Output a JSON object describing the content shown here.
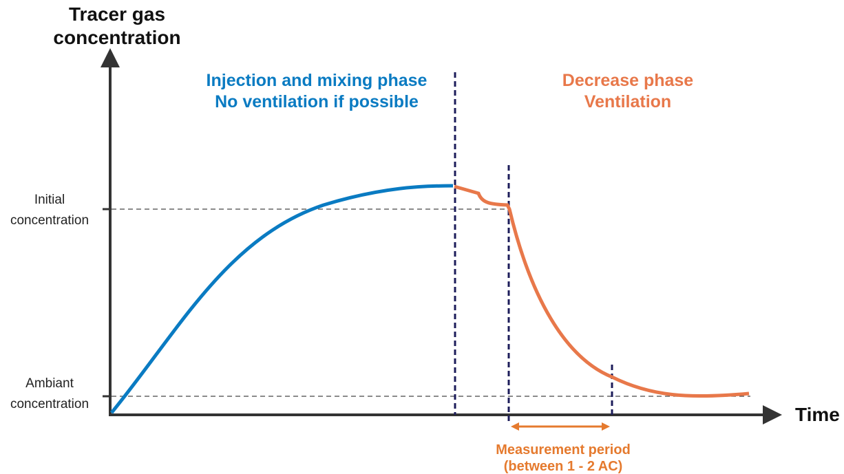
{
  "axes": {
    "y_label": [
      "Tracer gas",
      "concentration"
    ],
    "x_label": "Time",
    "levels": [
      {
        "label": [
          "Initial",
          "concentration"
        ]
      },
      {
        "label": [
          "Ambiant",
          "concentration"
        ]
      }
    ]
  },
  "phases": [
    {
      "label": [
        "Injection and mixing phase",
        "No ventilation if possible"
      ]
    },
    {
      "label": [
        "Decrease phase",
        "Ventilation"
      ]
    }
  ],
  "measurement": {
    "label": [
      "Measurement period",
      "(between 1 - 2 AC)"
    ]
  }
}
